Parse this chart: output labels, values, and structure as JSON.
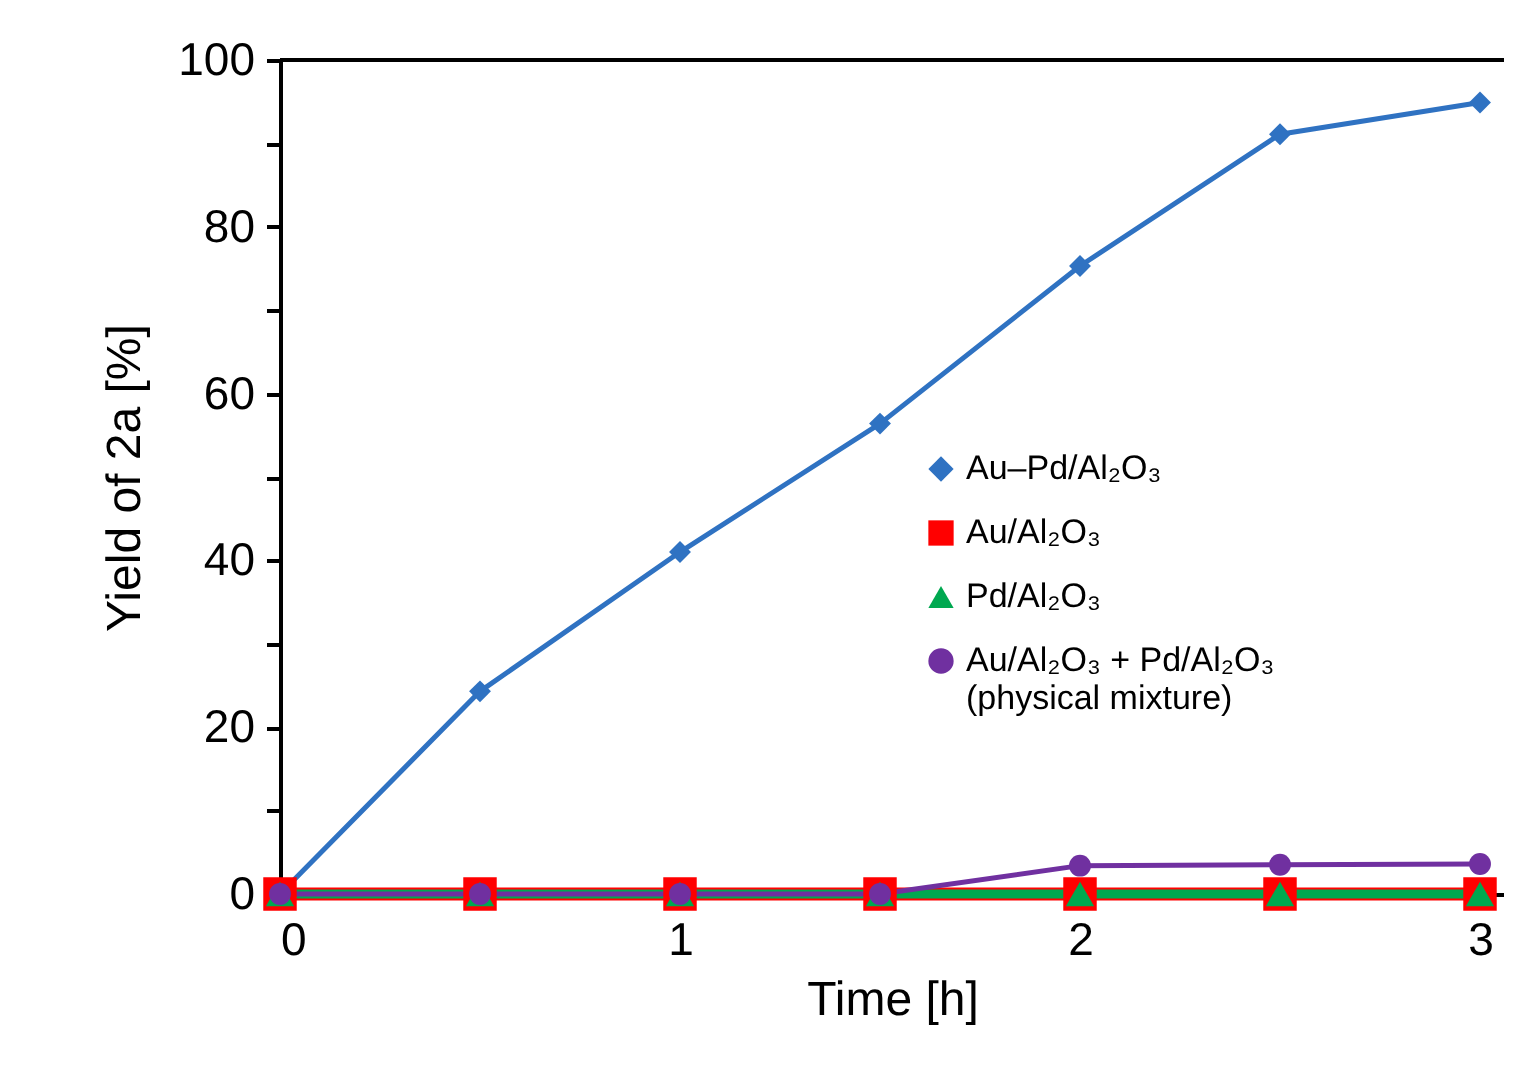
{
  "chart_data": {
    "type": "line",
    "xlabel": "Time [h]",
    "ylabel": "Yield of 2a [%]",
    "x": [
      0,
      0.5,
      1,
      1.5,
      2,
      2.5,
      3
    ],
    "xlim": [
      0,
      3.06
    ],
    "xticks": [
      0,
      1,
      2,
      3
    ],
    "ylim": [
      0,
      100
    ],
    "yticks": [
      0,
      {
        "value": 10,
        "label": null
      },
      20,
      {
        "value": 30,
        "label": null
      },
      40,
      {
        "value": 50,
        "label": null
      },
      60,
      {
        "value": 70,
        "label": null
      },
      80,
      {
        "value": 90,
        "label": null
      },
      100
    ],
    "grid": false,
    "legend": "right",
    "line_style": "solid",
    "series": [
      {
        "name": "Au–Pd/Al₂O₃",
        "color": "#2f72c2",
        "marker": "diamond",
        "values": [
          0,
          24.3,
          41,
          56.4,
          75.3,
          91.1,
          94.9
        ]
      },
      {
        "name": "Au/Al₂O₃",
        "color": "#ff0000",
        "marker": "square",
        "values": [
          0,
          0,
          0,
          0,
          0,
          0,
          0
        ]
      },
      {
        "name": "Pd/Al₂O₃",
        "color": "#00a850",
        "marker": "triangle",
        "values": [
          0,
          0,
          0,
          0,
          0,
          0,
          0
        ]
      },
      {
        "name": "Au/Al₂O₃ + Pd/Al₂O₃\n(physical mixture)",
        "color": "#7030a0",
        "marker": "circle",
        "values": [
          0,
          0,
          0,
          0,
          3.4,
          3.5,
          3.6
        ]
      }
    ]
  }
}
